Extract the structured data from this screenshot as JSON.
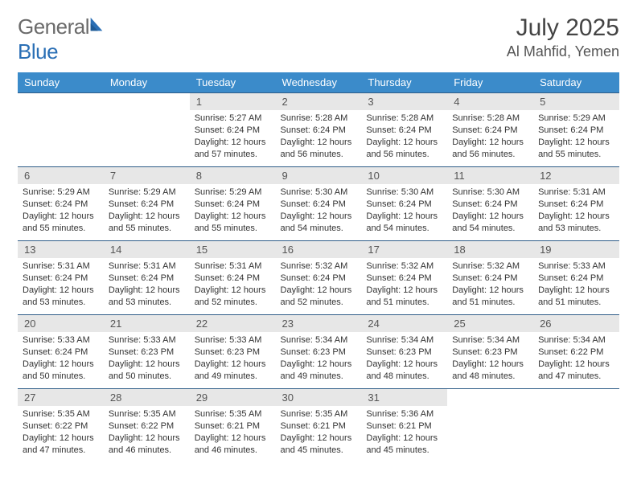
{
  "brand": {
    "word1": "General",
    "word2": "Blue"
  },
  "header": {
    "title": "July 2025",
    "location": "Al Mahfid, Yemen"
  },
  "colors": {
    "header_bg": "#3b8bca",
    "header_text": "#ffffff",
    "row_border": "#2f5d88",
    "daynum_bg": "#e7e7e7",
    "logo_gray": "#6b6b6b",
    "logo_blue": "#2a6fb5"
  },
  "daynames": [
    "Sunday",
    "Monday",
    "Tuesday",
    "Wednesday",
    "Thursday",
    "Friday",
    "Saturday"
  ],
  "weeks": [
    [
      null,
      null,
      {
        "n": "1",
        "sr": "5:27 AM",
        "ss": "6:24 PM",
        "dl": "12 hours and 57 minutes."
      },
      {
        "n": "2",
        "sr": "5:28 AM",
        "ss": "6:24 PM",
        "dl": "12 hours and 56 minutes."
      },
      {
        "n": "3",
        "sr": "5:28 AM",
        "ss": "6:24 PM",
        "dl": "12 hours and 56 minutes."
      },
      {
        "n": "4",
        "sr": "5:28 AM",
        "ss": "6:24 PM",
        "dl": "12 hours and 56 minutes."
      },
      {
        "n": "5",
        "sr": "5:29 AM",
        "ss": "6:24 PM",
        "dl": "12 hours and 55 minutes."
      }
    ],
    [
      {
        "n": "6",
        "sr": "5:29 AM",
        "ss": "6:24 PM",
        "dl": "12 hours and 55 minutes."
      },
      {
        "n": "7",
        "sr": "5:29 AM",
        "ss": "6:24 PM",
        "dl": "12 hours and 55 minutes."
      },
      {
        "n": "8",
        "sr": "5:29 AM",
        "ss": "6:24 PM",
        "dl": "12 hours and 55 minutes."
      },
      {
        "n": "9",
        "sr": "5:30 AM",
        "ss": "6:24 PM",
        "dl": "12 hours and 54 minutes."
      },
      {
        "n": "10",
        "sr": "5:30 AM",
        "ss": "6:24 PM",
        "dl": "12 hours and 54 minutes."
      },
      {
        "n": "11",
        "sr": "5:30 AM",
        "ss": "6:24 PM",
        "dl": "12 hours and 54 minutes."
      },
      {
        "n": "12",
        "sr": "5:31 AM",
        "ss": "6:24 PM",
        "dl": "12 hours and 53 minutes."
      }
    ],
    [
      {
        "n": "13",
        "sr": "5:31 AM",
        "ss": "6:24 PM",
        "dl": "12 hours and 53 minutes."
      },
      {
        "n": "14",
        "sr": "5:31 AM",
        "ss": "6:24 PM",
        "dl": "12 hours and 53 minutes."
      },
      {
        "n": "15",
        "sr": "5:31 AM",
        "ss": "6:24 PM",
        "dl": "12 hours and 52 minutes."
      },
      {
        "n": "16",
        "sr": "5:32 AM",
        "ss": "6:24 PM",
        "dl": "12 hours and 52 minutes."
      },
      {
        "n": "17",
        "sr": "5:32 AM",
        "ss": "6:24 PM",
        "dl": "12 hours and 51 minutes."
      },
      {
        "n": "18",
        "sr": "5:32 AM",
        "ss": "6:24 PM",
        "dl": "12 hours and 51 minutes."
      },
      {
        "n": "19",
        "sr": "5:33 AM",
        "ss": "6:24 PM",
        "dl": "12 hours and 51 minutes."
      }
    ],
    [
      {
        "n": "20",
        "sr": "5:33 AM",
        "ss": "6:24 PM",
        "dl": "12 hours and 50 minutes."
      },
      {
        "n": "21",
        "sr": "5:33 AM",
        "ss": "6:23 PM",
        "dl": "12 hours and 50 minutes."
      },
      {
        "n": "22",
        "sr": "5:33 AM",
        "ss": "6:23 PM",
        "dl": "12 hours and 49 minutes."
      },
      {
        "n": "23",
        "sr": "5:34 AM",
        "ss": "6:23 PM",
        "dl": "12 hours and 49 minutes."
      },
      {
        "n": "24",
        "sr": "5:34 AM",
        "ss": "6:23 PM",
        "dl": "12 hours and 48 minutes."
      },
      {
        "n": "25",
        "sr": "5:34 AM",
        "ss": "6:23 PM",
        "dl": "12 hours and 48 minutes."
      },
      {
        "n": "26",
        "sr": "5:34 AM",
        "ss": "6:22 PM",
        "dl": "12 hours and 47 minutes."
      }
    ],
    [
      {
        "n": "27",
        "sr": "5:35 AM",
        "ss": "6:22 PM",
        "dl": "12 hours and 47 minutes."
      },
      {
        "n": "28",
        "sr": "5:35 AM",
        "ss": "6:22 PM",
        "dl": "12 hours and 46 minutes."
      },
      {
        "n": "29",
        "sr": "5:35 AM",
        "ss": "6:21 PM",
        "dl": "12 hours and 46 minutes."
      },
      {
        "n": "30",
        "sr": "5:35 AM",
        "ss": "6:21 PM",
        "dl": "12 hours and 45 minutes."
      },
      {
        "n": "31",
        "sr": "5:36 AM",
        "ss": "6:21 PM",
        "dl": "12 hours and 45 minutes."
      },
      null,
      null
    ]
  ],
  "labels": {
    "sunrise": "Sunrise:",
    "sunset": "Sunset:",
    "daylight": "Daylight:"
  }
}
